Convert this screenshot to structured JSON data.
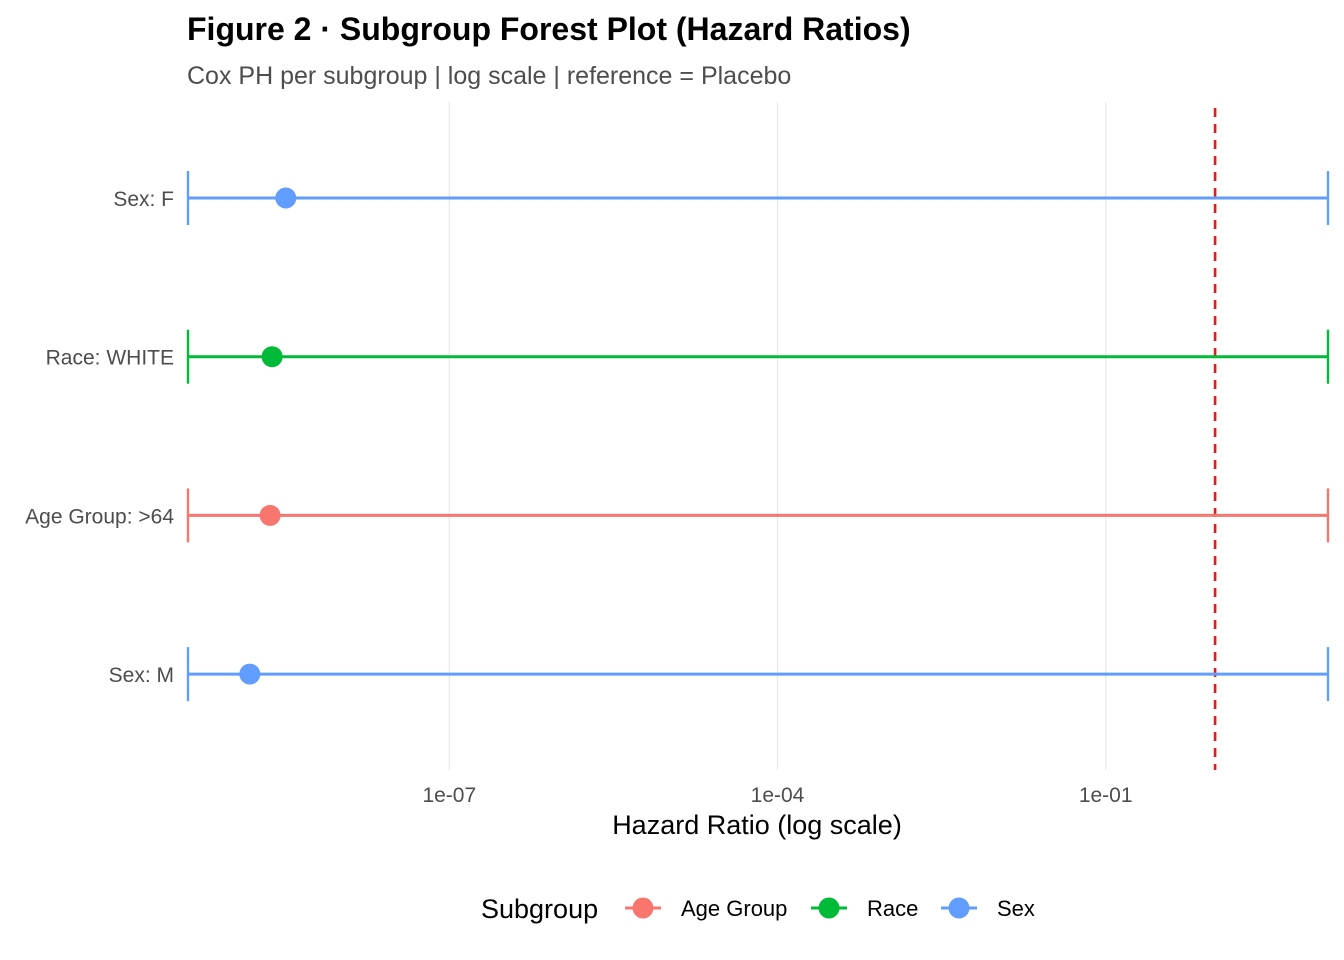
{
  "chart_data": {
    "type": "forest",
    "title": "Figure 2 · Subgroup Forest Plot (Hazard Ratios)",
    "subtitle": "Cox PH per subgroup | log scale | reference = Placebo",
    "xlabel": "Hazard Ratio (log scale)",
    "ylabel": "",
    "x_scale": "log",
    "xlim": [
      4e-10,
      11
    ],
    "x_ticks": [
      1e-07,
      0.0001,
      0.1
    ],
    "x_tick_labels": [
      "1e-07",
      "1e-04",
      "1e-01"
    ],
    "grid": true,
    "reference_line": {
      "x": 1,
      "color": "#E41A1C",
      "style": "dashed"
    },
    "legend": {
      "title": "Subgroup",
      "position": "bottom",
      "entries": [
        {
          "name": "Age Group",
          "color": "#F8766D"
        },
        {
          "name": "Race",
          "color": "#00BA38"
        },
        {
          "name": "Sex",
          "color": "#619CFF"
        }
      ]
    },
    "rows": [
      {
        "label": "Sex: F",
        "group": "Sex",
        "hr": 3.2e-09,
        "lower": 4e-10,
        "upper": 11
      },
      {
        "label": "Race: WHITE",
        "group": "Race",
        "hr": 2.4e-09,
        "lower": 4e-10,
        "upper": 11
      },
      {
        "label": "Age Group: >64",
        "group": "Age Group",
        "hr": 2.3e-09,
        "lower": 4e-10,
        "upper": 11
      },
      {
        "label": "Sex: M",
        "group": "Sex",
        "hr": 1.5e-09,
        "lower": 4e-10,
        "upper": 11
      }
    ]
  }
}
